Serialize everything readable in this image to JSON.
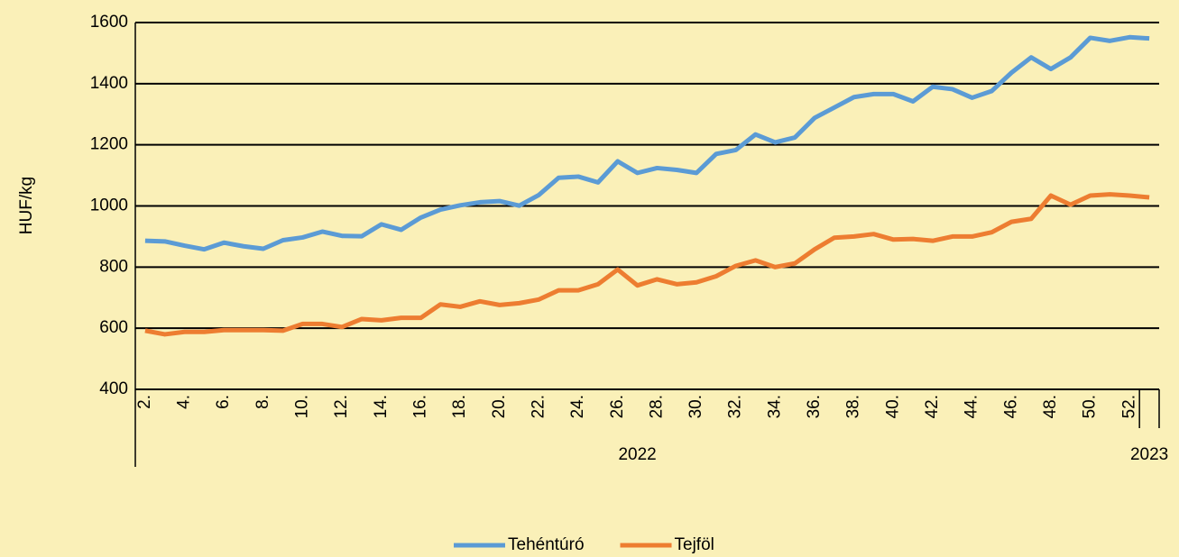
{
  "chart_data": {
    "type": "line",
    "ylabel": "HUF/kg",
    "categories": [
      "2.",
      null,
      "4.",
      null,
      "6.",
      null,
      "8.",
      null,
      "10.",
      null,
      "12.",
      null,
      "14.",
      null,
      "16.",
      null,
      "18.",
      null,
      "20.",
      null,
      "22.",
      null,
      "24.",
      null,
      "26.",
      null,
      "28.",
      null,
      "30.",
      null,
      "32.",
      null,
      "34.",
      null,
      "36.",
      null,
      "38.",
      null,
      "40.",
      null,
      "42.",
      null,
      "44.",
      null,
      "46.",
      null,
      "48.",
      null,
      "50.",
      null,
      "52.",
      null
    ],
    "groups": [
      {
        "name": "2022",
        "count": 51
      },
      {
        "name": "2023",
        "count": 1
      }
    ],
    "series": [
      {
        "name": "Tehéntúró",
        "color": "#5b9bd5",
        "values": [
          886,
          884,
          870,
          858,
          880,
          868,
          860,
          888,
          897,
          916,
          902,
          901,
          940,
          922,
          962,
          988,
          1002,
          1012,
          1016,
          1001,
          1036,
          1092,
          1096,
          1077,
          1146,
          1108,
          1124,
          1118,
          1108,
          1170,
          1183,
          1234,
          1208,
          1224,
          1288,
          1322,
          1356,
          1366,
          1366,
          1342,
          1390,
          1382,
          1354,
          1376,
          1436,
          1486,
          1448,
          1486,
          1550,
          1540,
          1552,
          1548
        ]
      },
      {
        "name": "Tejföl",
        "color": "#ed7d31",
        "values": [
          592,
          580,
          588,
          588,
          594,
          594,
          594,
          592,
          614,
          614,
          604,
          630,
          626,
          634,
          634,
          678,
          670,
          688,
          676,
          682,
          694,
          724,
          724,
          744,
          792,
          740,
          760,
          744,
          750,
          770,
          804,
          822,
          800,
          812,
          858,
          896,
          900,
          908,
          890,
          892,
          886,
          900,
          900,
          914,
          948,
          958,
          1034,
          1004,
          1034,
          1038,
          1034,
          1028
        ]
      }
    ],
    "ylim": [
      400,
      1600
    ],
    "yticks": [
      400,
      600,
      800,
      1000,
      1200,
      1400,
      1600
    ],
    "grid": true,
    "legend": "bottom"
  }
}
